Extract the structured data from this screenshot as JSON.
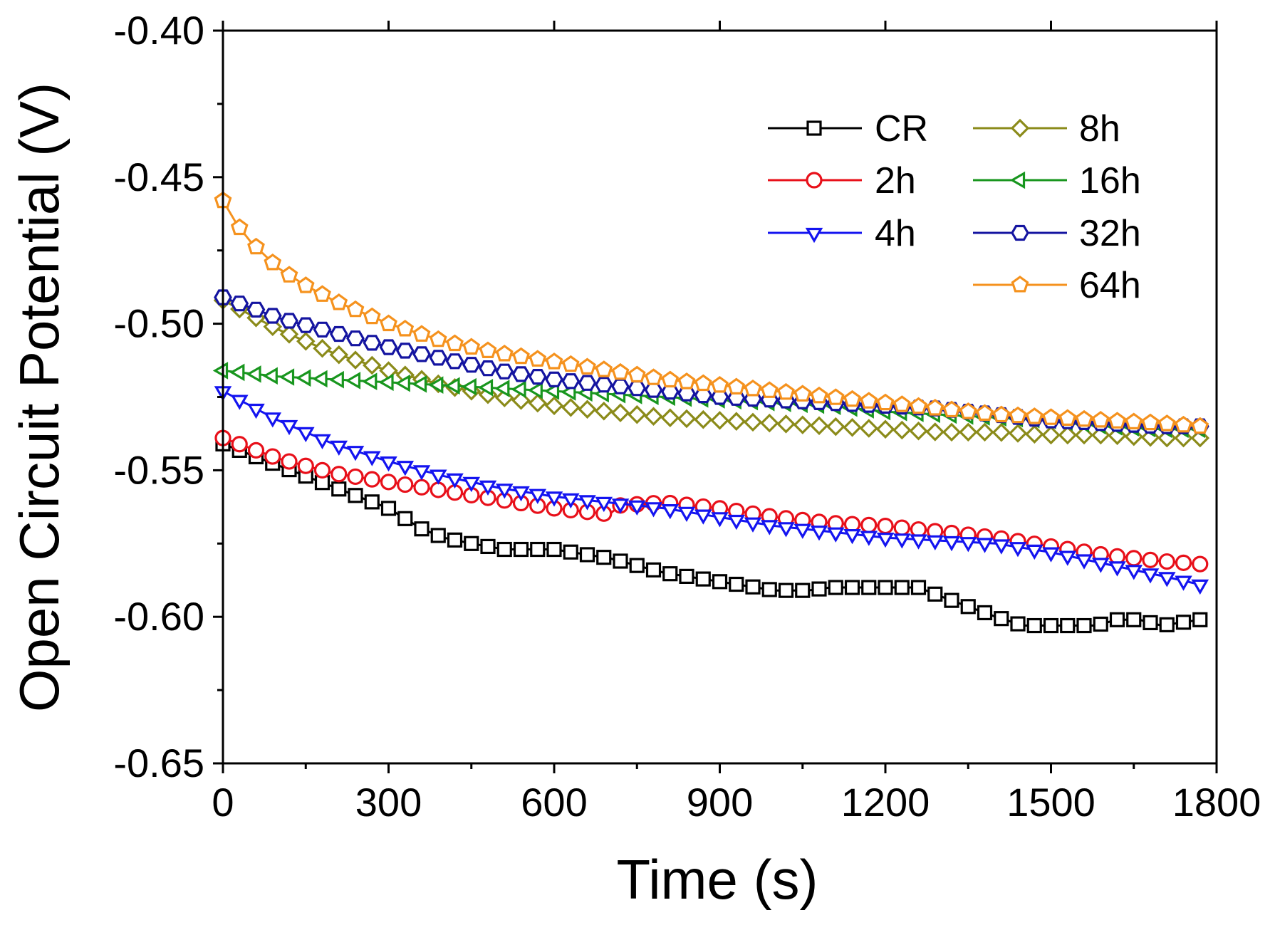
{
  "chart_data": {
    "type": "line",
    "title": "",
    "xlabel": "Time (s)",
    "ylabel": "Open Circuit Potential (V)",
    "xlim": [
      0,
      1800
    ],
    "ylim": [
      -0.65,
      -0.4
    ],
    "xticks": [
      0,
      300,
      600,
      900,
      1200,
      1500,
      1800
    ],
    "xtick_labels": [
      "0",
      "300",
      "600",
      "900",
      "1200",
      "1500",
      "1800"
    ],
    "yticks": [
      -0.4,
      -0.45,
      -0.5,
      -0.55,
      -0.6,
      -0.65
    ],
    "ytick_labels": [
      "-0.40",
      "-0.45",
      "-0.50",
      "-0.55",
      "-0.60",
      "-0.65"
    ],
    "grid": false,
    "legend_position": "top-right",
    "marker_interval_s": 30,
    "series": [
      {
        "name": "CR",
        "color": "#000000",
        "marker": "square",
        "x": [
          0,
          150,
          300,
          360,
          400,
          450,
          510,
          600,
          700,
          800,
          900,
          1000,
          1060,
          1100,
          1150,
          1200,
          1260,
          1300,
          1400,
          1450,
          1500,
          1580,
          1620,
          1660,
          1700,
          1770
        ],
        "y": [
          -0.541,
          -0.552,
          -0.563,
          -0.57,
          -0.573,
          -0.575,
          -0.577,
          -0.577,
          -0.58,
          -0.585,
          -0.588,
          -0.591,
          -0.591,
          -0.59,
          -0.59,
          -0.59,
          -0.59,
          -0.593,
          -0.6,
          -0.603,
          -0.603,
          -0.603,
          -0.601,
          -0.601,
          -0.603,
          -0.601
        ]
      },
      {
        "name": "2h",
        "color": "#e8101a",
        "marker": "circle",
        "x": [
          0,
          100,
          200,
          300,
          400,
          500,
          600,
          700,
          720,
          800,
          900,
          1000,
          1100,
          1200,
          1300,
          1400,
          1500,
          1600,
          1700,
          1770
        ],
        "y": [
          -0.539,
          -0.546,
          -0.551,
          -0.554,
          -0.557,
          -0.56,
          -0.563,
          -0.565,
          -0.562,
          -0.561,
          -0.563,
          -0.566,
          -0.568,
          -0.569,
          -0.571,
          -0.573,
          -0.576,
          -0.579,
          -0.581,
          -0.582
        ]
      },
      {
        "name": "4h",
        "color": "#1414f0",
        "marker": "triangle-down",
        "x": [
          0,
          100,
          200,
          300,
          400,
          500,
          600,
          700,
          800,
          900,
          1000,
          1100,
          1200,
          1300,
          1400,
          1500,
          1600,
          1700,
          1770
        ],
        "y": [
          -0.523,
          -0.533,
          -0.541,
          -0.547,
          -0.552,
          -0.556,
          -0.559,
          -0.561,
          -0.563,
          -0.566,
          -0.569,
          -0.571,
          -0.573,
          -0.574,
          -0.575,
          -0.578,
          -0.582,
          -0.586,
          -0.589
        ]
      },
      {
        "name": "8h",
        "color": "#8b8b1a",
        "marker": "diamond",
        "x": [
          0,
          100,
          200,
          300,
          400,
          500,
          600,
          700,
          800,
          900,
          1000,
          1100,
          1200,
          1300,
          1400,
          1500,
          1600,
          1700,
          1770
        ],
        "y": [
          -0.492,
          -0.502,
          -0.51,
          -0.516,
          -0.521,
          -0.525,
          -0.528,
          -0.53,
          -0.532,
          -0.533,
          -0.534,
          -0.535,
          -0.536,
          -0.537,
          -0.537,
          -0.538,
          -0.538,
          -0.539,
          -0.539
        ]
      },
      {
        "name": "16h",
        "color": "#18961e",
        "marker": "triangle-left",
        "x": [
          0,
          100,
          200,
          300,
          400,
          500,
          600,
          700,
          800,
          900,
          1000,
          1100,
          1200,
          1300,
          1400,
          1500,
          1600,
          1700,
          1770
        ],
        "y": [
          -0.516,
          -0.518,
          -0.519,
          -0.52,
          -0.521,
          -0.522,
          -0.523,
          -0.524,
          -0.525,
          -0.526,
          -0.527,
          -0.528,
          -0.53,
          -0.531,
          -0.532,
          -0.533,
          -0.535,
          -0.536,
          -0.536
        ]
      },
      {
        "name": "32h",
        "color": "#1414a0",
        "marker": "hexagon",
        "x": [
          0,
          100,
          200,
          300,
          400,
          500,
          600,
          700,
          800,
          900,
          1000,
          1100,
          1200,
          1300,
          1400,
          1500,
          1600,
          1700,
          1770
        ],
        "y": [
          -0.491,
          -0.498,
          -0.503,
          -0.508,
          -0.512,
          -0.516,
          -0.519,
          -0.521,
          -0.523,
          -0.525,
          -0.526,
          -0.527,
          -0.528,
          -0.529,
          -0.531,
          -0.533,
          -0.534,
          -0.535,
          -0.535
        ]
      },
      {
        "name": "64h",
        "color": "#f5921e",
        "marker": "pentagon",
        "x": [
          0,
          25,
          50,
          100,
          150,
          200,
          300,
          400,
          500,
          600,
          700,
          800,
          900,
          1000,
          1100,
          1200,
          1300,
          1400,
          1500,
          1600,
          1700,
          1770
        ],
        "y": [
          -0.458,
          -0.466,
          -0.472,
          -0.481,
          -0.487,
          -0.492,
          -0.5,
          -0.506,
          -0.51,
          -0.513,
          -0.516,
          -0.519,
          -0.521,
          -0.523,
          -0.525,
          -0.527,
          -0.529,
          -0.531,
          -0.532,
          -0.533,
          -0.534,
          -0.535
        ]
      }
    ]
  }
}
